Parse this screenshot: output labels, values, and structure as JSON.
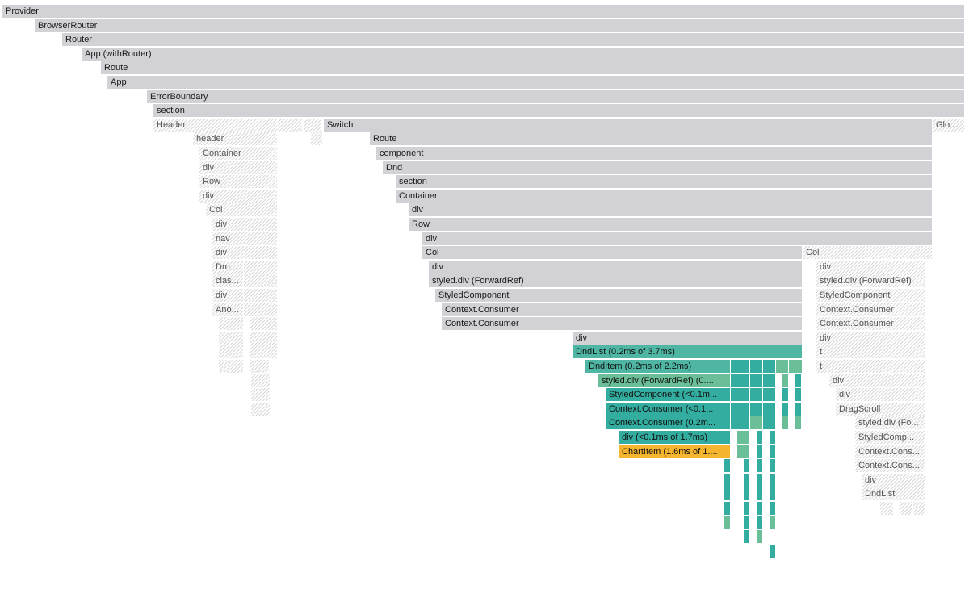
{
  "flamegraph": {
    "colors": {
      "rendered_gray": "#d1d1d6",
      "not_rendered_hatch": "#d8d8dc",
      "teal": "#4fb6a3",
      "teal_dark": "#33ad9f",
      "teal_green": "#6bbf98",
      "highlight_orange": "#f6b52e"
    },
    "nodes": [
      {
        "label": "Provider",
        "kind": "gray"
      },
      {
        "label": "BrowserRouter",
        "kind": "gray"
      },
      {
        "label": "Router",
        "kind": "gray"
      },
      {
        "label": "App (withRouter)",
        "kind": "gray"
      },
      {
        "label": "Route",
        "kind": "gray"
      },
      {
        "label": "App",
        "kind": "gray"
      },
      {
        "label": "ErrorBoundary",
        "kind": "gray"
      },
      {
        "label": "section",
        "kind": "gray"
      },
      {
        "label": "Header",
        "kind": "hatch"
      },
      {
        "label": "",
        "kind": "hatch"
      },
      {
        "label": "",
        "kind": "hatch"
      },
      {
        "label": "Switch",
        "kind": "gray"
      },
      {
        "label": "Glo...",
        "kind": "hatch"
      },
      {
        "label": "header",
        "kind": "hatch"
      },
      {
        "label": "",
        "kind": "hatch"
      },
      {
        "label": "Route",
        "kind": "gray"
      },
      {
        "label": "Container",
        "kind": "hatch"
      },
      {
        "label": "component",
        "kind": "gray"
      },
      {
        "label": "div",
        "kind": "hatch"
      },
      {
        "label": "Dnd",
        "kind": "gray"
      },
      {
        "label": "Row",
        "kind": "hatch"
      },
      {
        "label": "section",
        "kind": "gray"
      },
      {
        "label": "div",
        "kind": "hatch"
      },
      {
        "label": "Container",
        "kind": "gray"
      },
      {
        "label": "Col",
        "kind": "hatch"
      },
      {
        "label": "div",
        "kind": "gray"
      },
      {
        "label": "div",
        "kind": "hatch"
      },
      {
        "label": "Row",
        "kind": "gray"
      },
      {
        "label": "nav",
        "kind": "hatch"
      },
      {
        "label": "div",
        "kind": "gray"
      },
      {
        "label": "div",
        "kind": "hatch"
      },
      {
        "label": "",
        "kind": "hatch"
      },
      {
        "label": "Col",
        "kind": "gray"
      },
      {
        "label": "Col",
        "kind": "hatch"
      },
      {
        "label": "",
        "kind": "hatch"
      },
      {
        "label": "Dro...",
        "kind": "hatch"
      },
      {
        "label": "",
        "kind": "hatch"
      },
      {
        "label": "div",
        "kind": "gray"
      },
      {
        "label": "div",
        "kind": "hatch"
      },
      {
        "label": "clas...",
        "kind": "hatch"
      },
      {
        "label": "",
        "kind": "hatch"
      },
      {
        "label": "styled.div (ForwardRef)",
        "kind": "gray"
      },
      {
        "label": "styled.div (ForwardRef)",
        "kind": "hatch"
      },
      {
        "label": "div",
        "kind": "hatch"
      },
      {
        "label": "",
        "kind": "hatch"
      },
      {
        "label": "StyledComponent",
        "kind": "gray"
      },
      {
        "label": "StyledComponent",
        "kind": "hatch"
      },
      {
        "label": "Ano...",
        "kind": "hatch"
      },
      {
        "label": "",
        "kind": "hatch"
      },
      {
        "label": "Context.Consumer",
        "kind": "gray"
      },
      {
        "label": "Context.Consumer",
        "kind": "hatch"
      },
      {
        "label": "",
        "kind": "hatch"
      },
      {
        "label": "",
        "kind": "hatch"
      },
      {
        "label": "Context.Consumer",
        "kind": "gray"
      },
      {
        "label": "Context.Consumer",
        "kind": "hatch"
      },
      {
        "label": "",
        "kind": "hatch"
      },
      {
        "label": "",
        "kind": "hatch"
      },
      {
        "label": "div",
        "kind": "gray"
      },
      {
        "label": "div",
        "kind": "hatch"
      },
      {
        "label": "",
        "kind": "hatch"
      },
      {
        "label": "",
        "kind": "hatch"
      },
      {
        "label": "DndList (0.2ms of 3.7ms)",
        "kind": "teal"
      },
      {
        "label": "t",
        "kind": "hatch"
      },
      {
        "label": "",
        "kind": "hatch"
      },
      {
        "label": "",
        "kind": "hatch"
      },
      {
        "label": "DndItem (0.2ms of 2.2ms)",
        "kind": "teal"
      },
      {
        "label": "",
        "kind": "teal2"
      },
      {
        "label": "",
        "kind": "teal2"
      },
      {
        "label": "",
        "kind": "teal2"
      },
      {
        "label": "",
        "kind": "teal3"
      },
      {
        "label": "",
        "kind": "teal3"
      },
      {
        "label": "t",
        "kind": "hatch"
      },
      {
        "label": "",
        "kind": "hatch"
      },
      {
        "label": "styled.div (ForwardRef) (0....",
        "kind": "teal3"
      },
      {
        "label": "",
        "kind": "teal2"
      },
      {
        "label": "",
        "kind": "teal2"
      },
      {
        "label": "",
        "kind": "teal2"
      },
      {
        "label": "",
        "kind": "teal3"
      },
      {
        "label": "",
        "kind": "teal2"
      },
      {
        "label": "div",
        "kind": "hatch"
      },
      {
        "label": "StyledComponent (<0.1m...",
        "kind": "teal2"
      },
      {
        "label": "",
        "kind": "teal2"
      },
      {
        "label": "",
        "kind": "teal2"
      },
      {
        "label": "",
        "kind": "teal2"
      },
      {
        "label": "",
        "kind": "teal2"
      },
      {
        "label": "",
        "kind": "teal2"
      },
      {
        "label": "div",
        "kind": "hatch"
      },
      {
        "label": "",
        "kind": "hatch"
      },
      {
        "label": "Context.Consumer (<0.1...",
        "kind": "teal2"
      },
      {
        "label": "",
        "kind": "teal2"
      },
      {
        "label": "",
        "kind": "teal2"
      },
      {
        "label": "",
        "kind": "teal2"
      },
      {
        "label": "",
        "kind": "teal2"
      },
      {
        "label": "",
        "kind": "teal2"
      },
      {
        "label": "DragScroll",
        "kind": "hatch"
      },
      {
        "label": "",
        "kind": "hatch"
      },
      {
        "label": "Context.Consumer (0.2m...",
        "kind": "teal2"
      },
      {
        "label": "",
        "kind": "teal2"
      },
      {
        "label": "",
        "kind": "teal3"
      },
      {
        "label": "",
        "kind": "teal2"
      },
      {
        "label": "",
        "kind": "teal3"
      },
      {
        "label": "",
        "kind": "teal3"
      },
      {
        "label": "styled.div (Fo...",
        "kind": "hatch"
      },
      {
        "label": "div (<0.1ms of 1.7ms)",
        "kind": "teal2"
      },
      {
        "label": "",
        "kind": "teal3"
      },
      {
        "label": "",
        "kind": "teal2"
      },
      {
        "label": "",
        "kind": "teal2"
      },
      {
        "label": "StyledComp...",
        "kind": "hatch"
      },
      {
        "label": "ChartItem (1.6ms of 1....",
        "kind": "orange"
      },
      {
        "label": "",
        "kind": "teal3"
      },
      {
        "label": "",
        "kind": "teal2"
      },
      {
        "label": "",
        "kind": "teal2"
      },
      {
        "label": "Context.Cons...",
        "kind": "hatch"
      },
      {
        "label": "",
        "kind": "teal2"
      },
      {
        "label": "",
        "kind": "teal2"
      },
      {
        "label": "",
        "kind": "teal2"
      },
      {
        "label": "",
        "kind": "teal2"
      },
      {
        "label": "Context.Cons...",
        "kind": "hatch"
      },
      {
        "label": "",
        "kind": "teal2"
      },
      {
        "label": "",
        "kind": "teal2"
      },
      {
        "label": "",
        "kind": "teal2"
      },
      {
        "label": "",
        "kind": "teal2"
      },
      {
        "label": "div",
        "kind": "hatch"
      },
      {
        "label": "",
        "kind": "teal2"
      },
      {
        "label": "",
        "kind": "teal2"
      },
      {
        "label": "",
        "kind": "teal2"
      },
      {
        "label": "",
        "kind": "teal2"
      },
      {
        "label": "DndList",
        "kind": "hatch"
      },
      {
        "label": "",
        "kind": "teal2"
      },
      {
        "label": "",
        "kind": "teal2"
      },
      {
        "label": "",
        "kind": "teal2"
      },
      {
        "label": "",
        "kind": "teal2"
      },
      {
        "label": "",
        "kind": "hatch"
      },
      {
        "label": "",
        "kind": "hatch"
      },
      {
        "label": "",
        "kind": "hatch"
      },
      {
        "label": "",
        "kind": "teal3"
      },
      {
        "label": "",
        "kind": "teal2"
      },
      {
        "label": "",
        "kind": "teal2"
      },
      {
        "label": "",
        "kind": "teal3"
      },
      {
        "label": "",
        "kind": "teal2"
      },
      {
        "label": "",
        "kind": "teal3"
      },
      {
        "label": "",
        "kind": "teal2"
      },
      {
        "label": "",
        "kind": "teal2"
      }
    ]
  }
}
